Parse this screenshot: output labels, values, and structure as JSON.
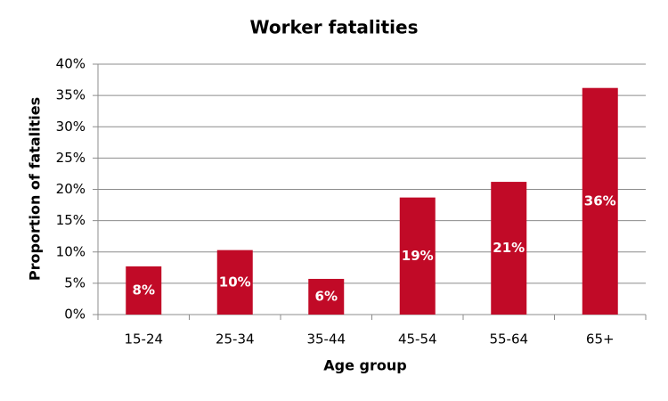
{
  "chart_data": {
    "type": "bar",
    "title": "Worker fatalities",
    "x_label": "Age group",
    "y_label": "Proportion of fatalities",
    "categories": [
      "15-24",
      "25-34",
      "35-44",
      "45-54",
      "55-64",
      "65+"
    ],
    "values": [
      7.7,
      10.3,
      5.7,
      18.7,
      21.2,
      36.2
    ],
    "value_labels": [
      "8%",
      "10%",
      "6%",
      "19%",
      "21%",
      "36%"
    ],
    "color": "#c10a27",
    "ylim": [
      0,
      40
    ],
    "yticks": [
      {
        "value": 0,
        "label": "0%"
      },
      {
        "value": 5,
        "label": "5%"
      },
      {
        "value": 10,
        "label": "10%"
      },
      {
        "value": 15,
        "label": "15%"
      },
      {
        "value": 20,
        "label": "20%"
      },
      {
        "value": 25,
        "label": "25%"
      },
      {
        "value": 30,
        "label": "30%"
      },
      {
        "value": 35,
        "label": "35%"
      },
      {
        "value": 40,
        "label": "40%"
      }
    ],
    "grid": true
  }
}
